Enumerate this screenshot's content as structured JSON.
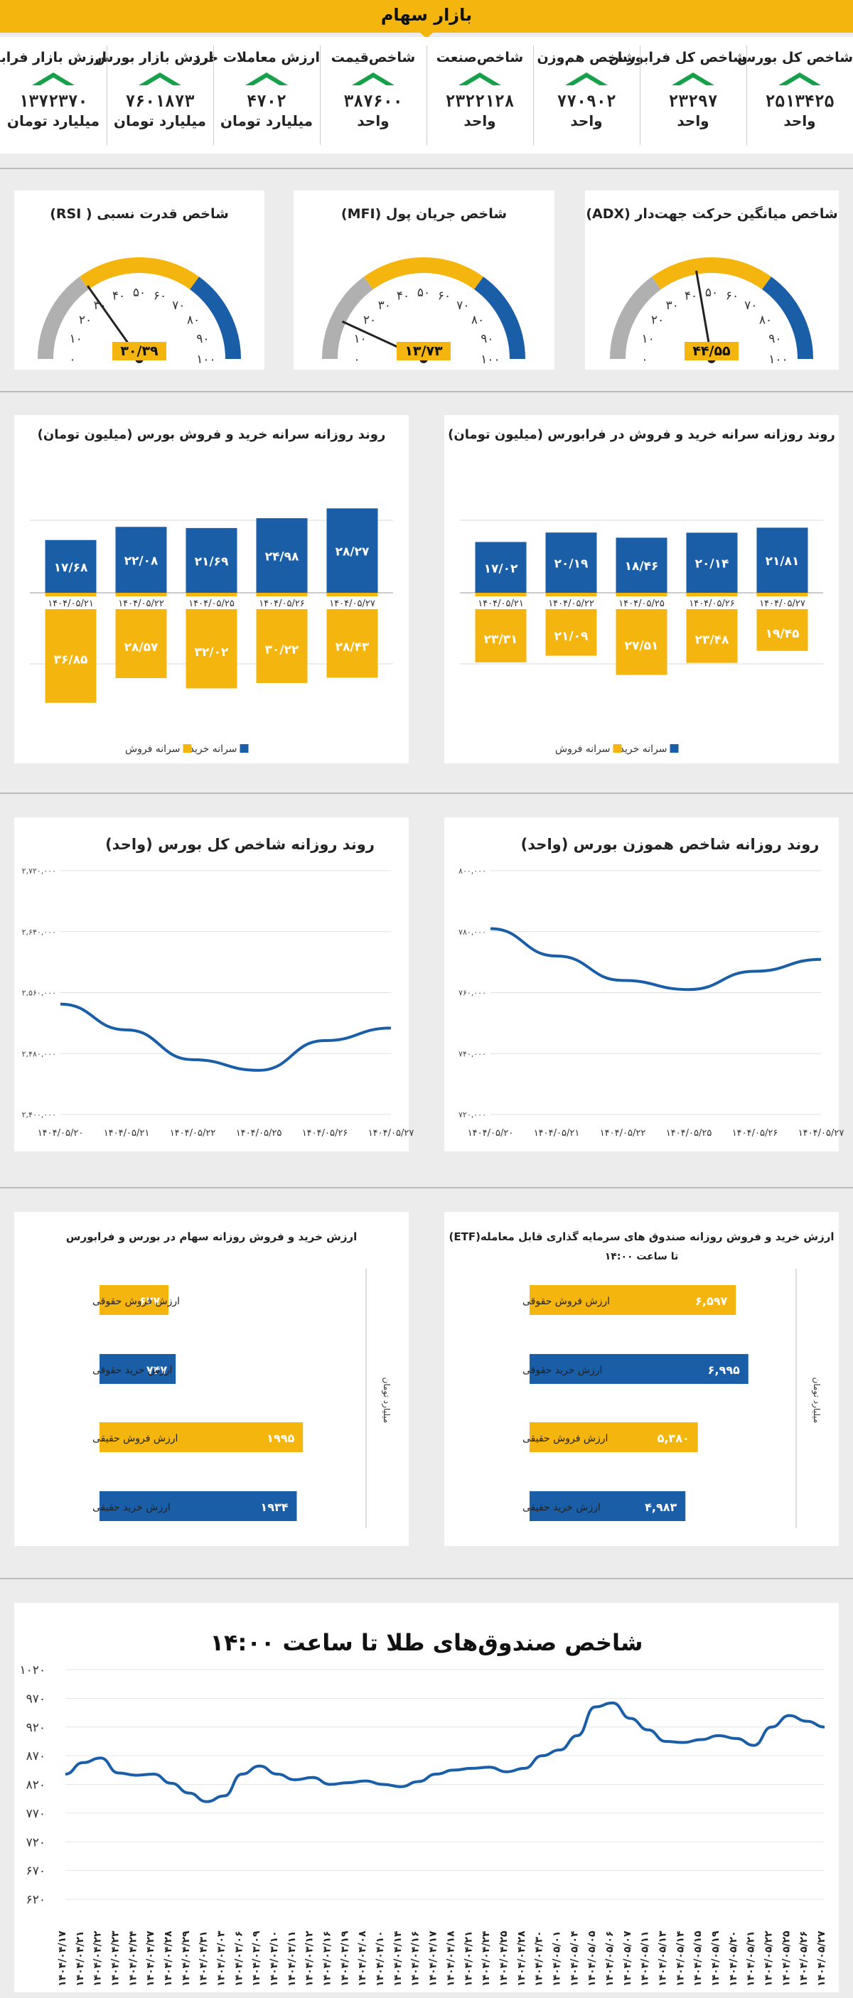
{
  "header": {
    "title": "بازار سهام"
  },
  "indicators": [
    {
      "label": "شاخص کل بورس",
      "value": "۲۵۱۳۴۲۵",
      "unit": "واحد"
    },
    {
      "label": "شاخص کل فرابورس",
      "value": "۲۳۲۹۷",
      "unit": "واحد"
    },
    {
      "label": "شاخص هم‌وزن",
      "value": "۷۷۰۹۰۲",
      "unit": "واحد"
    },
    {
      "label": "شاخص‌صنعت",
      "value": "۲۳۲۲۱۲۸",
      "unit": "واحد"
    },
    {
      "label": "شاخص‌قیمت",
      "value": "۳۸۷۶۰۰",
      "unit": "واحد"
    },
    {
      "label": "ارزش معاملات خرد",
      "value": "۴۷۰۲",
      "unit": "میلیارد تومان"
    },
    {
      "label": "ارزش بازار بورس",
      "value": "۷۶۰۱۸۷۳",
      "unit": "میلیارد تومان"
    },
    {
      "label": "ارزش بازار فرابورس",
      "value": "۱۳۷۲۳۷۰",
      "unit": "میلیارد تومان"
    }
  ],
  "colors": {
    "accent": "#f5b50f",
    "blue": "#1a5ea8",
    "green": "#16a04a",
    "gray": "#b0b0b0"
  },
  "gauges": [
    {
      "title": "شاخص قدرت نسبی ( RSI)",
      "value": 30.39,
      "value_label": "۳۰/۳۹",
      "ticks": [
        "۰",
        "۱۰",
        "۲۰",
        "۳۰",
        "۴۰",
        "۵۰",
        "۶۰",
        "۷۰",
        "۸۰",
        "۹۰",
        "۱۰۰"
      ]
    },
    {
      "title": "شاخص جریان پول (MFI)",
      "value": 13.73,
      "value_label": "۱۳/۷۳",
      "ticks": [
        "۰",
        "۱۰",
        "۲۰",
        "۳۰",
        "۴۰",
        "۵۰",
        "۶۰",
        "۷۰",
        "۸۰",
        "۹۰",
        "۱۰۰"
      ]
    },
    {
      "title": "شاخص میانگین حرکت جهت‌دار (ADX)",
      "value": 44.55,
      "value_label": "۴۴/۵۵",
      "ticks": [
        "۰",
        "۱۰",
        "۲۰",
        "۳۰",
        "۴۰",
        "۵۰",
        "۶۰",
        "۷۰",
        "۸۰",
        "۹۰",
        "۱۰۰"
      ]
    }
  ],
  "chart_data": [
    {
      "type": "bar",
      "id": "percap-bourse",
      "title": "روند روزانه سرانه خرید و فروش بورس (میلیون تومان)",
      "categories": [
        "۱۴۰۴/۰۵/۲۱",
        "۱۴۰۴/۰۵/۲۲",
        "۱۴۰۴/۰۵/۲۵",
        "۱۴۰۴/۰۵/۲۶",
        "۱۴۰۴/۰۵/۲۷"
      ],
      "series": [
        {
          "name": "سرانه خرید",
          "values": [
            17.68,
            22.08,
            21.69,
            24.98,
            28.27
          ],
          "labels": [
            "۱۷/۶۸",
            "۲۲/۰۸",
            "۲۱/۶۹",
            "۲۴/۹۸",
            "۲۸/۲۷"
          ]
        },
        {
          "name": "سرانه فروش",
          "values": [
            36.85,
            28.57,
            32.02,
            30.22,
            28.43
          ],
          "labels": [
            "۳۶/۸۵",
            "۲۸/۵۷",
            "۳۲/۰۲",
            "۳۰/۲۲",
            "۲۸/۴۳"
          ]
        }
      ]
    },
    {
      "type": "bar",
      "id": "percap-farabourse",
      "title": "روند روزانه سرانه خرید و فروش در فرابورس (میلیون تومان)",
      "categories": [
        "۱۴۰۴/۰۵/۲۱",
        "۱۴۰۴/۰۵/۲۲",
        "۱۴۰۴/۰۵/۲۵",
        "۱۴۰۴/۰۵/۲۶",
        "۱۴۰۴/۰۵/۲۷"
      ],
      "series": [
        {
          "name": "سرانه خرید",
          "values": [
            17.02,
            20.19,
            18.46,
            20.14,
            21.81
          ],
          "labels": [
            "۱۷/۰۲",
            "۲۰/۱۹",
            "۱۸/۴۶",
            "۲۰/۱۴",
            "۲۱/۸۱"
          ]
        },
        {
          "name": "سرانه فروش",
          "values": [
            23.31,
            21.09,
            27.51,
            23.48,
            19.45
          ],
          "labels": [
            "۲۳/۳۱",
            "۲۱/۰۹",
            "۲۷/۵۱",
            "۲۳/۴۸",
            "۱۹/۴۵"
          ]
        }
      ]
    },
    {
      "type": "line",
      "id": "total-index",
      "title": "روند روزانه شاخص کل بورس (واحد)",
      "categories": [
        "۱۴۰۴/۰۵/۲۰",
        "۱۴۰۴/۰۵/۲۱",
        "۱۴۰۴/۰۵/۲۲",
        "۱۴۰۴/۰۵/۲۵",
        "۱۴۰۴/۰۵/۲۶",
        "۱۴۰۴/۰۵/۲۷"
      ],
      "values": [
        2545000,
        2511000,
        2472000,
        2458000,
        2497000,
        2513425
      ],
      "ylim": [
        2400000,
        2720000
      ],
      "yticks": [
        "۲,۴۰۰,۰۰۰",
        "۲,۴۸۰,۰۰۰",
        "۲,۵۶۰,۰۰۰",
        "۲,۶۴۰,۰۰۰",
        "۲,۷۲۰,۰۰۰"
      ]
    },
    {
      "type": "line",
      "id": "equal-index",
      "title": "روند روزانه شاخص هموزن بورس (واحد)",
      "categories": [
        "۱۴۰۴/۰۵/۲۰",
        "۱۴۰۴/۰۵/۲۱",
        "۱۴۰۴/۰۵/۲۲",
        "۱۴۰۴/۰۵/۲۵",
        "۱۴۰۴/۰۵/۲۶",
        "۱۴۰۴/۰۵/۲۷"
      ],
      "values": [
        781000,
        772000,
        764000,
        761000,
        767000,
        770902
      ],
      "ylim": [
        720000,
        800000
      ],
      "yticks": [
        "۷۲۰,۰۰۰",
        "۷۴۰,۰۰۰",
        "۷۶۰,۰۰۰",
        "۷۸۰,۰۰۰",
        "۸۰۰,۰۰۰"
      ]
    },
    {
      "type": "bar",
      "id": "stock-value",
      "orientation": "horizontal",
      "title": "ارزش خرید و فروش روزانه سهام در بورس و فرابورس",
      "ylabel": "میلیارد تومان",
      "categories": [
        "ارزش فروش حقوقی",
        "ارزش خرید حقوقی",
        "ارزش فروش حقیقی",
        "ارزش خرید حقیقی"
      ],
      "values": [
        677,
        747,
        1995,
        1934
      ],
      "labels": [
        "۶۷۷",
        "۷۴۷",
        "۱۹۹۵",
        "۱۹۳۴"
      ],
      "colors": [
        "#f5b50f",
        "#1a5ea8",
        "#f5b50f",
        "#1a5ea8"
      ]
    },
    {
      "type": "bar",
      "id": "etf-value",
      "orientation": "horizontal",
      "title": "ارزش خرید و فروش روزانه صندوق های سرمایه گذاری قابل معامله(ETF)",
      "subtitle": "تا ساعت ۱۴:۰۰",
      "ylabel": "میلیارد تومان",
      "categories": [
        "ارزش فروش حقوقی",
        "ارزش خرید حقوقی",
        "ارزش فروش حقیقی",
        "ارزش خرید حقیقی"
      ],
      "values": [
        6597,
        6995,
        5380,
        4983
      ],
      "labels": [
        "۶,۵۹۷",
        "۶,۹۹۵",
        "۵,۳۸۰",
        "۴,۹۸۳"
      ],
      "colors": [
        "#f5b50f",
        "#1a5ea8",
        "#f5b50f",
        "#1a5ea8"
      ]
    },
    {
      "type": "line",
      "id": "gold-funds",
      "title": "شاخص صندوق‌های طلا تا ساعت ۱۴:۰۰",
      "ylim": [
        620,
        1020
      ],
      "yticks": [
        "۶۲۰",
        "۶۷۰",
        "۷۲۰",
        "۷۷۰",
        "۸۲۰",
        "۸۷۰",
        "۹۲۰",
        "۹۷۰",
        "۱۰۲۰"
      ],
      "categories": [
        "۱۴۰۴/۰۴/۱۷",
        "۱۴۰۴/۰۴/۲۱",
        "۱۴۰۴/۰۴/۲۲",
        "۱۴۰۴/۰۴/۲۳",
        "۱۴۰۴/۰۴/۲۴",
        "۱۴۰۴/۰۴/۲۷",
        "۱۴۰۴/۰۴/۲۸",
        "۱۴۰۴/۰۴/۲۹",
        "۱۴۰۴/۰۴/۳۱",
        "۱۴۰۴/۰۳/۰۳",
        "۱۴۰۴/۰۳/۰۶",
        "۱۴۰۴/۰۳/۰۹",
        "۱۴۰۴/۰۳/۱۰",
        "۱۴۰۴/۰۳/۱۱",
        "۱۴۰۴/۰۳/۱۲",
        "۱۴۰۴/۰۳/۱۶",
        "۱۴۰۴/۰۳/۱۹",
        "۱۴۰۴/۰۴/۰۸",
        "۱۴۰۴/۰۴/۱۰",
        "۱۴۰۴/۰۴/۱۴",
        "۱۴۰۴/۰۴/۱۶",
        "۱۴۰۴/۰۴/۱۷",
        "۱۴۰۴/۰۴/۱۸",
        "۱۴۰۴/۰۴/۲۱",
        "۱۴۰۴/۰۴/۲۴",
        "۱۴۰۴/۰۴/۲۵",
        "۱۴۰۴/۰۴/۲۸",
        "۱۴۰۴/۰۴/۳۰",
        "۱۴۰۴/۰۵/۰۱",
        "۱۴۰۴/۰۵/۰۴",
        "۱۴۰۴/۰۵/۰۵",
        "۱۴۰۴/۰۵/۰۶",
        "۱۴۰۴/۰۵/۰۷",
        "۱۴۰۴/۰۵/۱۱",
        "۱۴۰۴/۰۵/۱۳",
        "۱۴۰۴/۰۵/۱۴",
        "۱۴۰۴/۰۵/۱۵",
        "۱۴۰۴/۰۵/۱۹",
        "۱۴۰۴/۰۵/۲۰",
        "۱۴۰۴/۰۵/۲۱",
        "۱۴۰۴/۰۵/۲۲",
        "۱۴۰۴/۰۵/۲۵",
        "۱۴۰۴/۰۵/۲۶",
        "۱۴۰۴/۰۵/۲۷"
      ],
      "values": [
        838,
        858,
        866,
        840,
        836,
        838,
        822,
        805,
        790,
        800,
        838,
        852,
        838,
        828,
        832,
        820,
        823,
        826,
        820,
        816,
        825,
        838,
        845,
        848,
        850,
        842,
        848,
        870,
        880,
        905,
        955,
        962,
        935,
        915,
        895,
        893,
        898,
        905,
        900,
        888,
        920,
        940,
        930,
        920
      ]
    }
  ]
}
